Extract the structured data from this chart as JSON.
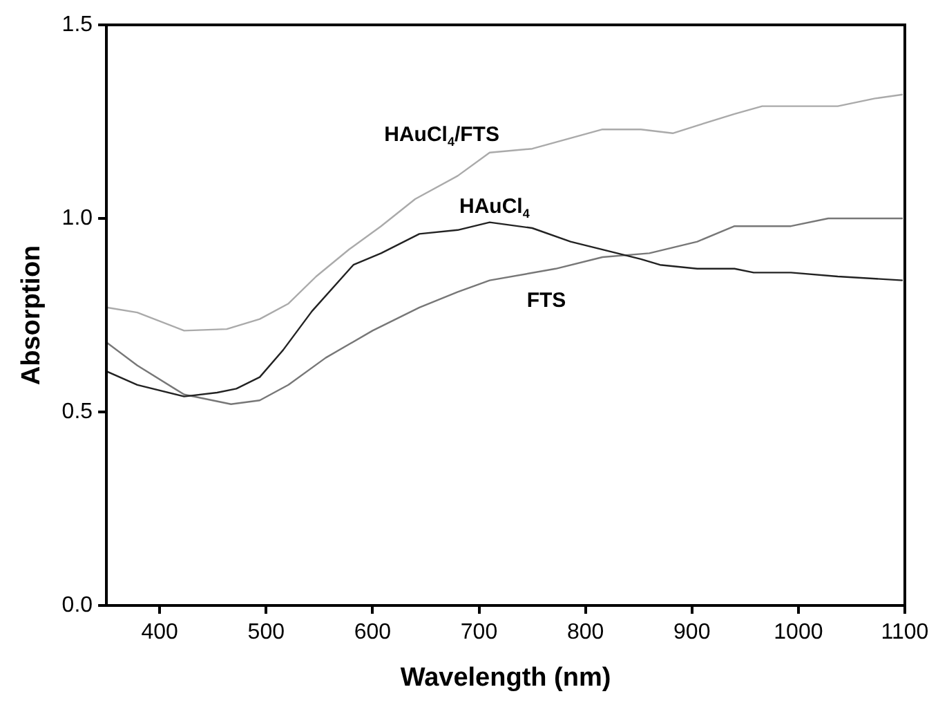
{
  "chart_data": {
    "type": "line",
    "xlabel": "Wavelength (nm)",
    "ylabel": "Absorption",
    "xlim": [
      350,
      1100
    ],
    "xticks": [
      400,
      500,
      600,
      700,
      800,
      900,
      1000,
      1100
    ],
    "ylim": [
      0,
      1.5
    ],
    "yticks": [
      {
        "value": 0,
        "label": "0.0"
      },
      0.5,
      {
        "value": 1,
        "label": "1.0"
      },
      1.5
    ],
    "grid": false,
    "legend": false,
    "marker": "none",
    "line_style": "solid",
    "series": [
      {
        "name": "HAuCl$_{4}$/FTS",
        "color": "#aaaaaa",
        "x": [
          350,
          379,
          423,
          463,
          494,
          521,
          547,
          578,
          608,
          640,
          680,
          710,
          750,
          816,
          852,
          882,
          905,
          940,
          966,
          1015,
          1037,
          1072,
          1098
        ],
        "values": [
          0.77,
          0.757,
          0.71,
          0.714,
          0.74,
          0.78,
          0.85,
          0.92,
          0.98,
          1.05,
          1.11,
          1.17,
          1.18,
          1.23,
          1.23,
          1.22,
          1.24,
          1.27,
          1.29,
          1.29,
          1.29,
          1.31,
          1.32
        ]
      },
      {
        "name": "HAuCl$_{4}$",
        "color": "#222222",
        "x": [
          350,
          379,
          423,
          454,
          472,
          494,
          516,
          543,
          582,
          608,
          644,
          680,
          710,
          750,
          786,
          852,
          870,
          905,
          940,
          958,
          993,
          1037,
          1098
        ],
        "values": [
          0.605,
          0.57,
          0.54,
          0.55,
          0.56,
          0.59,
          0.66,
          0.76,
          0.88,
          0.91,
          0.96,
          0.97,
          0.99,
          0.975,
          0.94,
          0.895,
          0.88,
          0.87,
          0.87,
          0.86,
          0.86,
          0.85,
          0.84
        ]
      },
      {
        "name": "FTS",
        "color": "#777777",
        "x": [
          350,
          379,
          423,
          467,
          494,
          521,
          556,
          600,
          644,
          680,
          710,
          772,
          816,
          860,
          905,
          940,
          993,
          1028,
          1098
        ],
        "values": [
          0.68,
          0.62,
          0.545,
          0.52,
          0.53,
          0.57,
          0.64,
          0.71,
          0.77,
          0.81,
          0.84,
          0.87,
          0.9,
          0.91,
          0.94,
          0.98,
          0.98,
          1.0,
          1.0
        ]
      }
    ]
  }
}
